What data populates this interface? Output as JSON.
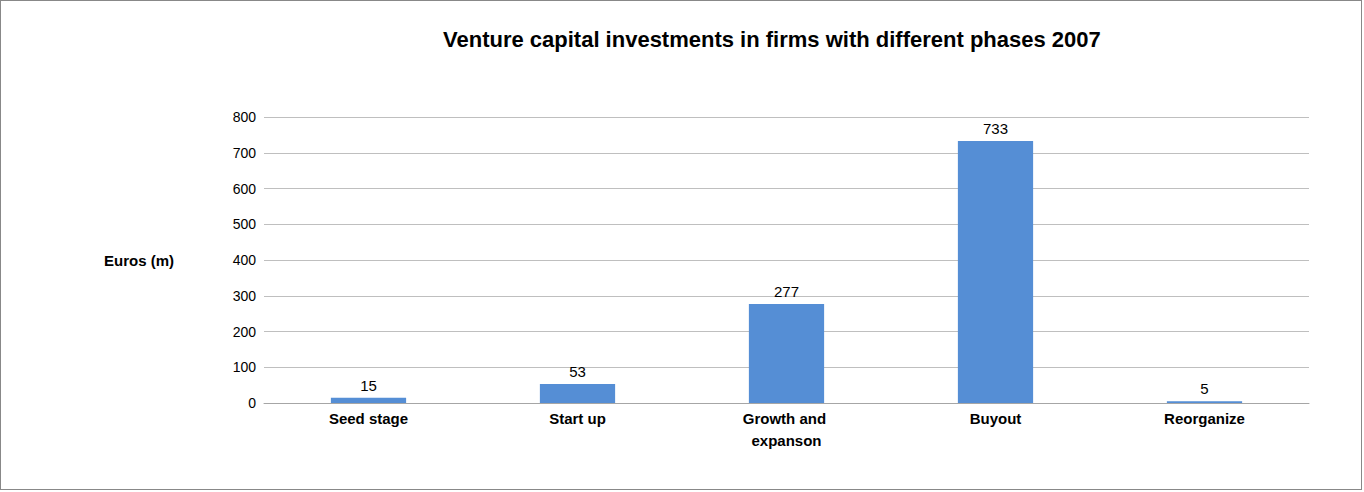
{
  "chart_data": {
    "type": "bar",
    "title": "Venture capital investments in firms with different phases 2007",
    "y_label": "Euros (m)",
    "categories": [
      "Seed stage",
      "Start up",
      "Growth and expanson",
      "Buyout",
      "Reorganize"
    ],
    "values": [
      15,
      53,
      277,
      733,
      5
    ],
    "color": "#558ed5",
    "ylim": [
      0,
      800
    ],
    "yticks": [
      0,
      100,
      200,
      300,
      400,
      500,
      600,
      700,
      800
    ],
    "grid": true,
    "data_labels": true
  }
}
